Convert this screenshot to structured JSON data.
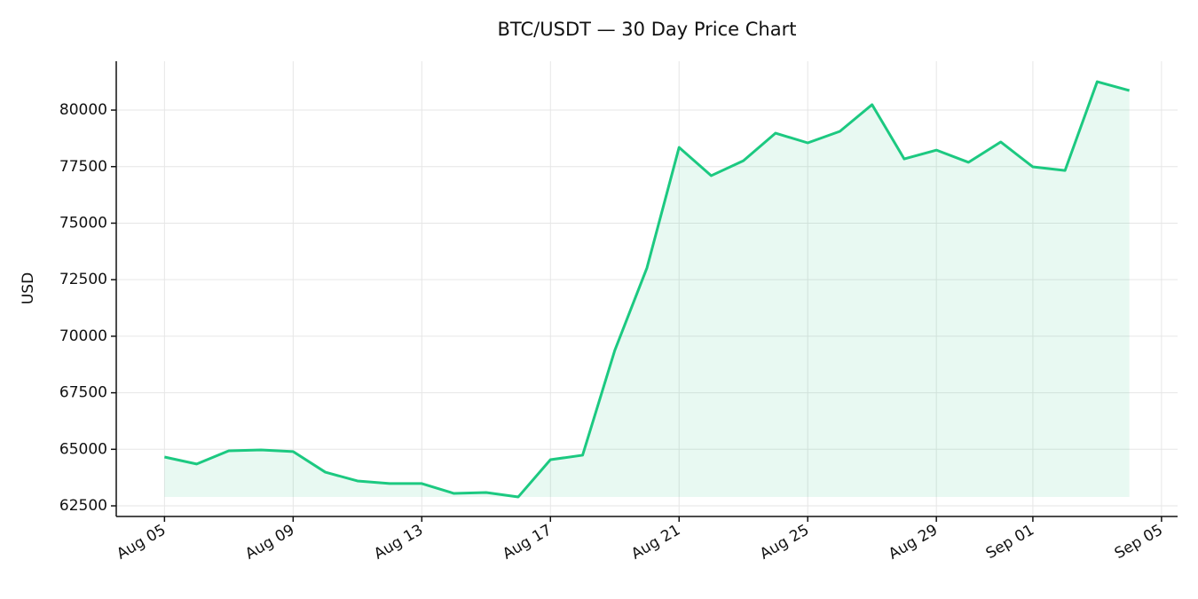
{
  "chart_data": {
    "type": "line",
    "title": "BTC/USDT — 30 Day Price Chart",
    "y_label": "USD",
    "x": [
      "08-05",
      "08-06",
      "08-07",
      "08-08",
      "08-09",
      "08-10",
      "08-11",
      "08-12",
      "08-13",
      "08-14",
      "08-15",
      "08-16",
      "08-17",
      "08-18",
      "08-19",
      "08-20",
      "08-21",
      "08-22",
      "08-23",
      "08-24",
      "08-25",
      "08-26",
      "08-27",
      "08-28",
      "08-29",
      "08-30",
      "08-31",
      "09-01",
      "09-02",
      "09-03",
      "09-04"
    ],
    "series": [
      {
        "name": "BTC/USDT",
        "color": "#1cc981",
        "values": [
          64660,
          64350,
          64935,
          64975,
          64900,
          63990,
          63600,
          63485,
          63485,
          63050,
          63090,
          62895,
          64540,
          64740,
          69370,
          73020,
          78350,
          77100,
          77760,
          78980,
          78550,
          79060,
          80240,
          77840,
          78230,
          77690,
          78590,
          77490,
          77330,
          81255,
          80865
        ]
      }
    ],
    "xlim": [
      "08-05",
      "09-04"
    ],
    "xticks": [
      {
        "value": "08-05",
        "label": "Aug 05"
      },
      {
        "value": "08-09",
        "label": "Aug 09"
      },
      {
        "value": "08-13",
        "label": "Aug 13"
      },
      {
        "value": "08-17",
        "label": "Aug 17"
      },
      {
        "value": "08-21",
        "label": "Aug 21"
      },
      {
        "value": "08-25",
        "label": "Aug 25"
      },
      {
        "value": "08-29",
        "label": "Aug 29"
      },
      {
        "value": "09-01",
        "label": "Sep 01"
      },
      {
        "value": "09-05",
        "label": "Sep 05"
      }
    ],
    "ylim": [
      62030,
      82160
    ],
    "yticks": [
      62500,
      65000,
      67500,
      70000,
      72500,
      75000,
      77500,
      80000
    ],
    "grid": true
  }
}
